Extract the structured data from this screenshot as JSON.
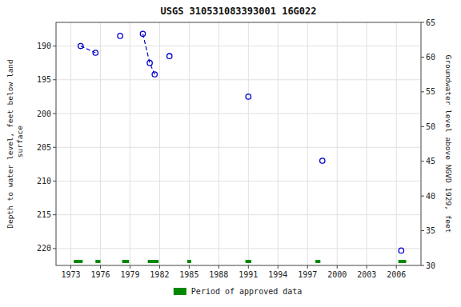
{
  "chart_data": {
    "type": "scatter",
    "title": "USGS 310531083393001 16G022",
    "ylabel": "Depth to water level, feet below land\n surface",
    "y2label": "Groundwater level above NGVD 1929, feet",
    "xlim": [
      1971.5,
      2008.5
    ],
    "ylim": [
      222.5,
      186.5
    ],
    "y2lim": [
      30,
      65
    ],
    "xticks": [
      1973,
      1976,
      1979,
      1982,
      1985,
      1988,
      1991,
      1994,
      1997,
      2000,
      2003,
      2006
    ],
    "yticks": [
      190,
      195,
      200,
      205,
      210,
      215,
      220
    ],
    "y2ticks": [
      30,
      35,
      40,
      45,
      50,
      55,
      60,
      65
    ],
    "grid": true,
    "legend": "bottom",
    "series": [
      {
        "type": "scatter",
        "marker": "circle",
        "color": "#0000cc",
        "x": [
          1974.0,
          1975.5,
          1978.0,
          1980.3,
          1981.0,
          1981.5,
          1983.0,
          1991.0,
          1998.5,
          2006.5
        ],
        "values": [
          190.0,
          191.0,
          188.5,
          188.2,
          192.5,
          194.2,
          191.5,
          197.5,
          207.0,
          220.3
        ]
      },
      {
        "type": "line",
        "line_style": "dashed",
        "color": "#0000cc",
        "x": [
          1974.0,
          1975.5,
          1978.0,
          1980.3,
          1981.0,
          1981.5,
          1983.0,
          1991.0,
          1998.5,
          2006.5
        ],
        "values": [
          190.0,
          191.0,
          null,
          188.2,
          192.5,
          194.2,
          null,
          null,
          null,
          null
        ]
      },
      {
        "type": "span",
        "name": "Period of approved data",
        "color": "#008800",
        "x_start": [
          1973.3,
          1975.5,
          1978.2,
          1980.8,
          1984.8,
          1990.7,
          1997.8,
          2006.2
        ],
        "x_end": [
          1974.2,
          1976.0,
          1978.9,
          1981.9,
          1985.2,
          1991.3,
          1998.3,
          2007.0
        ]
      }
    ]
  }
}
